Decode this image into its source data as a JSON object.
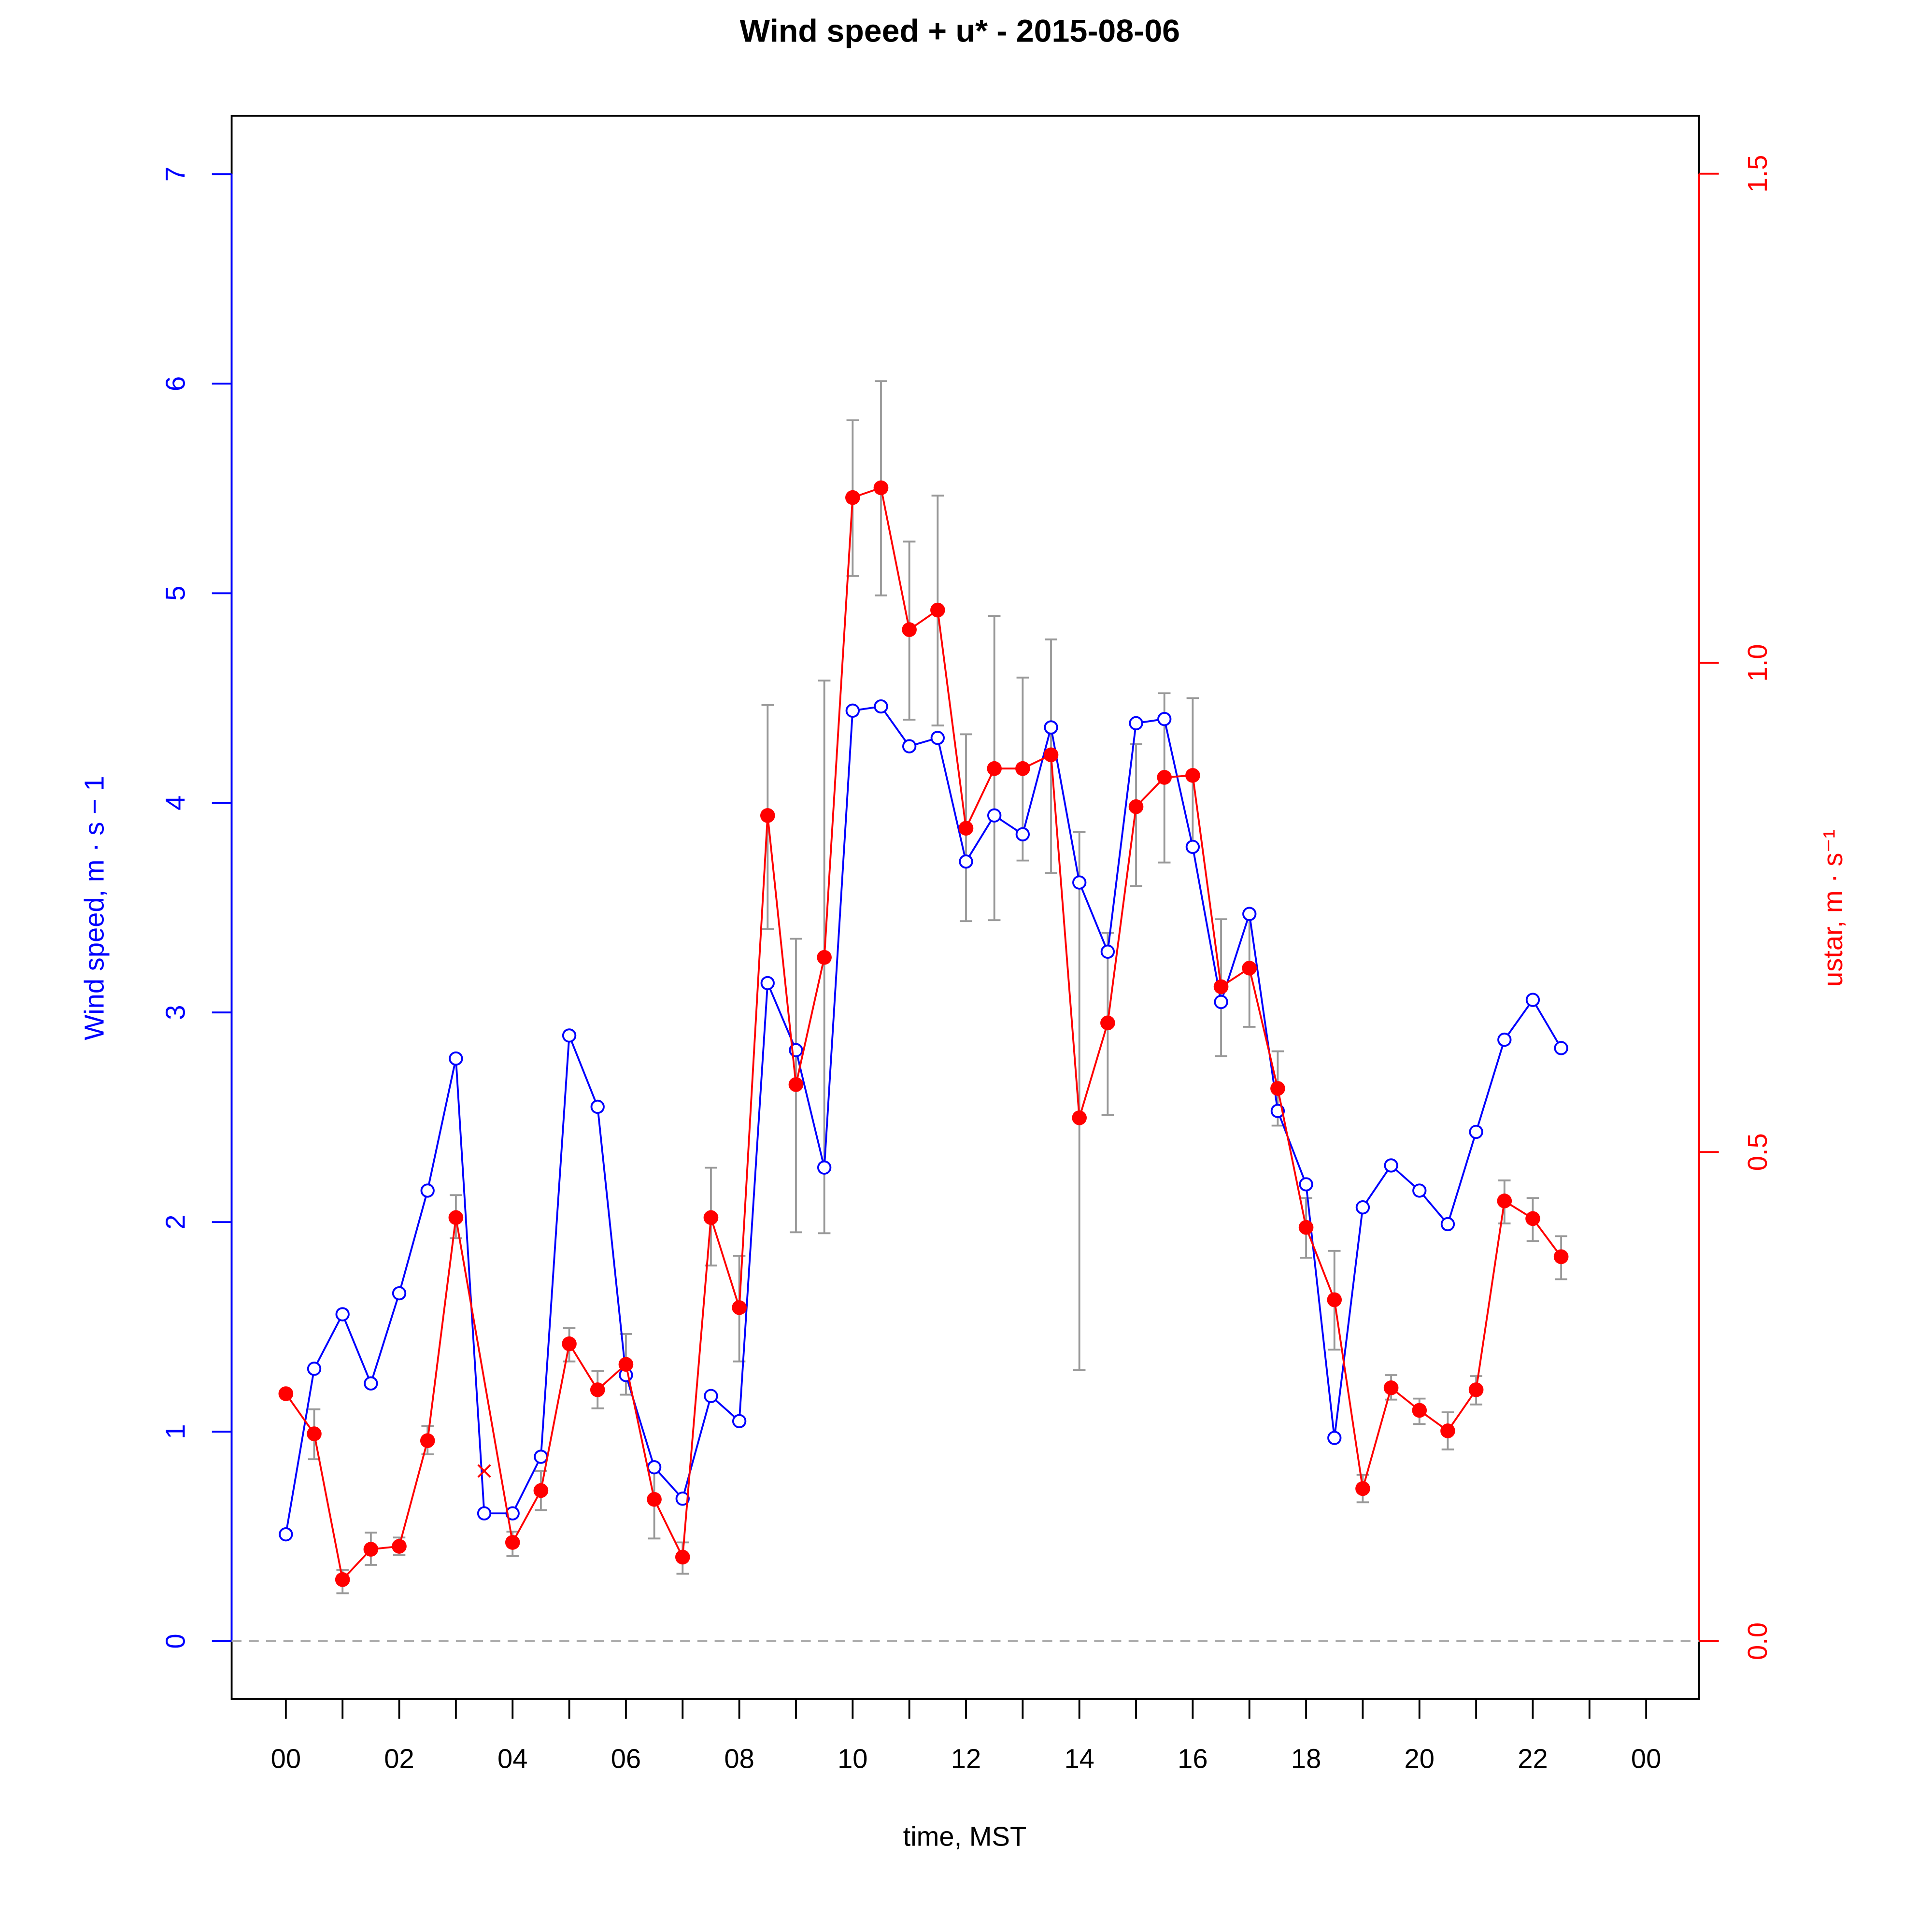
{
  "chart_data": {
    "type": "line",
    "title": "Wind speed + u* -  2015-08-06",
    "xlabel": "time, MST",
    "ylabel_left": "Wind speed, m · s − 1",
    "ylabel_right": "ustar, m · s⁻¹",
    "xlim": [
      -1,
      25
    ],
    "ylim_left": [
      -0.27,
      7.28
    ],
    "ylim_right": [
      -0.06,
      1.56
    ],
    "x_ticks": [
      0,
      1,
      2,
      3,
      4,
      5,
      6,
      7,
      8,
      9,
      10,
      11,
      12,
      13,
      14,
      15,
      16,
      17,
      18,
      19,
      20,
      21,
      22,
      23,
      24
    ],
    "x_tick_labels": [
      {
        "x": 0,
        "label": "00"
      },
      {
        "x": 2,
        "label": "02"
      },
      {
        "x": 4,
        "label": "04"
      },
      {
        "x": 6,
        "label": "06"
      },
      {
        "x": 8,
        "label": "08"
      },
      {
        "x": 10,
        "label": "10"
      },
      {
        "x": 12,
        "label": "12"
      },
      {
        "x": 14,
        "label": "14"
      },
      {
        "x": 16,
        "label": "16"
      },
      {
        "x": 18,
        "label": "18"
      },
      {
        "x": 20,
        "label": "20"
      },
      {
        "x": 22,
        "label": "22"
      },
      {
        "x": 24,
        "label": "00"
      }
    ],
    "y_left_ticks": [
      "0",
      "1",
      "2",
      "3",
      "4",
      "5",
      "6",
      "7"
    ],
    "y_right_ticks": [
      "0.0",
      "0.5",
      "1.0",
      "1.5"
    ],
    "colors": {
      "wind": "#0000ff",
      "ustar": "#ff0000",
      "errorbar": "#999999",
      "zero_line": "#aaaaaa"
    },
    "x": [
      0,
      0.5,
      1,
      1.5,
      2,
      2.5,
      3,
      3.5,
      4,
      4.5,
      5,
      5.5,
      6,
      6.5,
      7,
      7.5,
      8,
      8.5,
      9,
      9.5,
      10,
      10.5,
      11,
      11.5,
      12,
      12.5,
      13,
      13.5,
      14,
      14.5,
      15,
      15.5,
      16,
      16.5,
      17,
      17.5,
      18,
      18.5,
      19,
      19.5,
      20,
      20.5,
      21,
      21.5,
      22,
      22.5
    ],
    "series": [
      {
        "axis": "left",
        "marker": "open-circle",
        "values": [
          0.51,
          1.3,
          1.56,
          1.23,
          1.66,
          2.15,
          2.78,
          0.61,
          0.61,
          0.88,
          2.89,
          2.55,
          1.27,
          0.83,
          0.68,
          1.17,
          1.05,
          3.14,
          2.82,
          2.26,
          4.44,
          4.46,
          4.27,
          4.31,
          3.72,
          3.94,
          3.85,
          4.36,
          3.62,
          3.29,
          4.38,
          4.4,
          3.79,
          3.05,
          3.47,
          2.53,
          2.18,
          0.97,
          2.07,
          2.27,
          2.15,
          1.99,
          2.43,
          2.87,
          3.06,
          2.83
        ]
      },
      {
        "axis": "right",
        "marker": "filled-circle",
        "values": [
          0.253,
          0.212,
          0.063,
          0.094,
          0.097,
          0.205,
          0.433,
          null,
          0.101,
          0.154,
          0.304,
          0.257,
          0.283,
          0.145,
          0.086,
          0.433,
          0.341,
          0.844,
          0.569,
          0.699,
          1.169,
          1.179,
          1.034,
          1.054,
          0.831,
          0.892,
          0.892,
          0.906,
          0.535,
          0.632,
          0.853,
          0.883,
          0.885,
          0.669,
          0.688,
          0.565,
          0.423,
          0.349,
          0.156,
          0.259,
          0.236,
          0.215,
          0.257,
          0.45,
          0.432,
          0.393
        ],
        "err_high": [
          null,
          0.237,
          0.073,
          0.111,
          0.106,
          0.22,
          0.456,
          null,
          0.112,
          0.174,
          0.32,
          0.276,
          0.314,
          0.179,
          0.101,
          0.484,
          0.394,
          0.957,
          0.718,
          0.982,
          1.248,
          1.288,
          1.124,
          1.171,
          0.927,
          1.048,
          0.985,
          1.024,
          0.827,
          0.724,
          0.917,
          0.969,
          0.964,
          0.738,
          0.746,
          0.603,
          0.453,
          0.399,
          0.17,
          0.272,
          0.248,
          0.234,
          0.271,
          0.471,
          0.453,
          0.414
        ],
        "err_low": [
          null,
          0.186,
          0.049,
          0.078,
          0.088,
          0.191,
          0.412,
          null,
          0.087,
          0.134,
          0.286,
          0.238,
          0.252,
          0.105,
          0.069,
          0.384,
          0.286,
          0.728,
          0.418,
          0.417,
          1.089,
          1.069,
          0.942,
          0.936,
          0.736,
          0.737,
          0.798,
          0.785,
          0.277,
          0.538,
          0.772,
          0.796,
          0.809,
          0.598,
          0.628,
          0.527,
          0.392,
          0.298,
          0.142,
          0.247,
          0.222,
          0.196,
          0.242,
          0.427,
          0.409,
          0.37
        ]
      }
    ],
    "flagged_points": [
      {
        "x": 3.5,
        "value": 0.174,
        "axis": "right",
        "marker": "x"
      }
    ],
    "grid": false
  }
}
